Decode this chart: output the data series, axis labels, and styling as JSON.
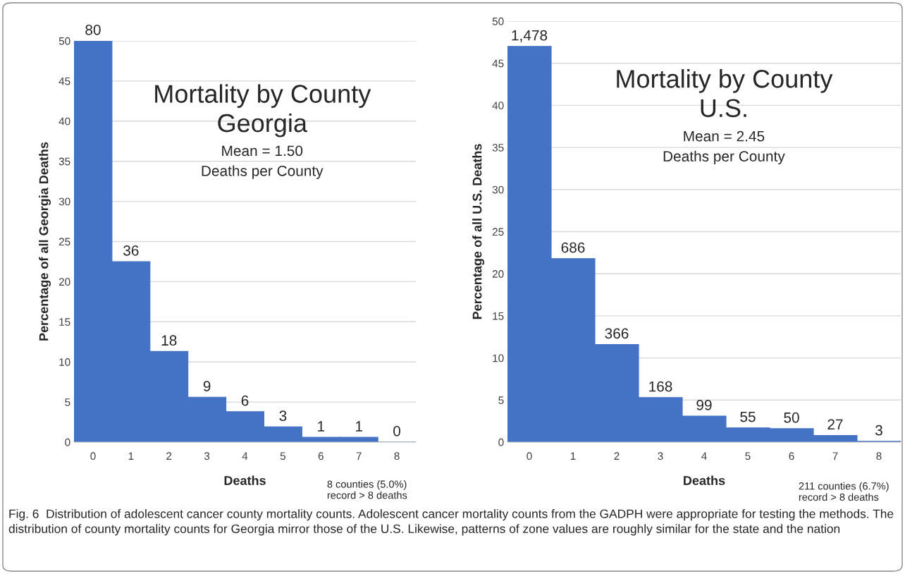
{
  "chart_data": [
    {
      "type": "bar",
      "title": "Mortality by County\nGeorgia",
      "subtitle": "Mean = 1.50\nDeaths per County",
      "xlabel": "Deaths",
      "ylabel": "Percentage of all Georgia Deaths",
      "categories": [
        "0",
        "1",
        "2",
        "3",
        "4",
        "5",
        "6",
        "7",
        "8"
      ],
      "values": [
        50,
        22.5,
        11.3,
        5.6,
        3.8,
        1.9,
        0.6,
        0.6,
        0
      ],
      "color": "#4472c4",
      "ylim": [
        0,
        50
      ],
      "yticks": [
        0,
        5,
        10,
        15,
        20,
        25,
        30,
        35,
        40,
        45,
        50
      ],
      "grid": "y",
      "annotations": [
        "8 counties (5.0%)\nrecord > 8 deaths",
        "Fig. 6  Distribution of adolescent cancer county mortality counts. Adolescent cancer mortality counts from the GADPH were appropriate for testing the methods. The distribution of county mortality counts for Georgia mirror those of the U.S. Likewise, patterns of zone values are roughly similar for the state and the nation",
        {
          "text": "80",
          "x": "0",
          "y": 50
        },
        {
          "text": "36",
          "x": "1",
          "y": 22.5
        },
        {
          "text": "18",
          "x": "2",
          "y": 11.3
        },
        {
          "text": "9",
          "x": "3",
          "y": 5.6
        },
        {
          "text": "6",
          "x": "4",
          "y": 3.8
        },
        {
          "text": "3",
          "x": "5",
          "y": 1.9
        },
        {
          "text": "1",
          "x": "6",
          "y": 0.6
        },
        {
          "text": "1",
          "x": "7",
          "y": 0.6
        },
        {
          "text": "0",
          "x": "8",
          "y": 0
        }
      ]
    },
    {
      "type": "bar",
      "title": "Mortality by County\nU.S.",
      "subtitle": "Mean = 2.45\nDeaths per County",
      "xlabel": "Deaths",
      "ylabel": "Percentage of all U.S. Deaths",
      "categories": [
        "0",
        "1",
        "2",
        "3",
        "4",
        "5",
        "6",
        "7",
        "8"
      ],
      "values": [
        47,
        21.8,
        11.6,
        5.3,
        3.1,
        1.7,
        1.6,
        0.8,
        0.1
      ],
      "color": "#4472c4",
      "ylim": [
        0,
        50
      ],
      "yticks": [
        0,
        5,
        10,
        15,
        20,
        25,
        30,
        35,
        40,
        45,
        50
      ],
      "grid": "y",
      "annotations": [
        "211 counties (6.7%)\nrecord > 8 deaths",
        {
          "text": "1,478",
          "x": "0",
          "y": 47
        },
        {
          "text": "686",
          "x": "1",
          "y": 21.8
        },
        {
          "text": "366",
          "x": "2",
          "y": 11.6
        },
        {
          "text": "168",
          "x": "3",
          "y": 5.3
        },
        {
          "text": "99",
          "x": "4",
          "y": 3.1
        },
        {
          "text": "55",
          "x": "5",
          "y": 1.7
        },
        {
          "text": "50",
          "x": "6",
          "y": 1.6
        },
        {
          "text": "27",
          "x": "7",
          "y": 0.8
        },
        {
          "text": "3",
          "x": "8",
          "y": 0.1
        }
      ]
    }
  ]
}
